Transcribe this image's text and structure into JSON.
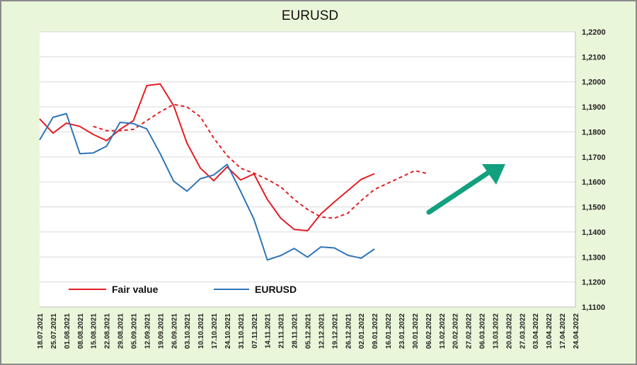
{
  "chart_data": {
    "type": "line",
    "title": "EURUSD",
    "xlabel": "",
    "ylabel": "",
    "ylim": [
      1.11,
      1.22
    ],
    "y_ticks": [
      "1,1100",
      "1,1200",
      "1,1300",
      "1,1400",
      "1,1500",
      "1,1600",
      "1,1700",
      "1,1800",
      "1,1900",
      "1,2000",
      "1,2100",
      "1,2200"
    ],
    "categories": [
      "18.07.2021",
      "25.07.2021",
      "01.08.2021",
      "08.08.2021",
      "15.08.2021",
      "22.08.2021",
      "29.08.2021",
      "05.09.2021",
      "12.09.2021",
      "19.09.2021",
      "26.09.2021",
      "03.10.2021",
      "10.10.2021",
      "17.10.2021",
      "24.10.2021",
      "31.10.2021",
      "07.11.2021",
      "14.11.2021",
      "21.11.2021",
      "28.11.2021",
      "05.12.2021",
      "12.12.2021",
      "19.12.2021",
      "26.12.2021",
      "02.01.2022",
      "09.01.2022",
      "16.01.2022",
      "23.01.2022",
      "30.01.2022",
      "06.02.2022",
      "13.02.2022",
      "20.02.2022",
      "27.02.2022",
      "06.03.2022",
      "13.03.2022",
      "20.03.2022",
      "27.03.2022",
      "03.04.2022",
      "10.04.2022",
      "17.04.2022",
      "24.04.2022"
    ],
    "grid": true,
    "y_axis_side": "right",
    "legend_position": "bottom-left",
    "series": [
      {
        "name": "Fair value",
        "color": "#e31e24",
        "style": "solid",
        "values": [
          1.1852,
          1.1795,
          1.1835,
          1.1822,
          1.179,
          1.1765,
          1.181,
          1.1845,
          1.1985,
          1.1992,
          1.1905,
          1.1755,
          1.1655,
          1.1605,
          1.166,
          1.1608,
          1.1632,
          1.153,
          1.1455,
          1.141,
          1.1405,
          1.1472,
          1.152,
          1.1565,
          1.161,
          1.1633,
          null,
          null,
          null,
          null,
          null,
          null,
          null,
          null,
          null,
          null,
          null,
          null,
          null,
          null,
          null
        ]
      },
      {
        "name": "",
        "color": "#e31e24",
        "style": "dashed",
        "values": [
          null,
          null,
          null,
          null,
          1.1822,
          1.1805,
          1.1805,
          1.181,
          1.1845,
          1.188,
          1.191,
          1.19,
          1.186,
          1.1775,
          1.1705,
          1.1655,
          1.1635,
          1.161,
          1.158,
          1.153,
          1.149,
          1.146,
          1.1455,
          1.1475,
          1.1525,
          1.157,
          1.1595,
          1.162,
          1.1645,
          1.1633,
          null,
          null,
          null,
          null,
          null,
          null,
          null,
          null,
          null,
          null,
          null
        ]
      },
      {
        "name": "EURUSD",
        "color": "#2e75b6",
        "style": "solid",
        "values": [
          1.1768,
          1.1858,
          1.1873,
          1.1713,
          1.1716,
          1.1743,
          1.1838,
          1.1833,
          1.1812,
          1.1713,
          1.1603,
          1.1563,
          1.1613,
          1.1628,
          1.167,
          1.1563,
          1.1451,
          1.1288,
          1.1306,
          1.1334,
          1.1299,
          1.134,
          1.1336,
          1.1307,
          1.1295,
          1.1332,
          null,
          null,
          null,
          null,
          null,
          null,
          null,
          null,
          null,
          null,
          null,
          null,
          null,
          null,
          null
        ]
      }
    ],
    "arrow": {
      "color": "#12a07e",
      "direction": "up-right"
    }
  }
}
